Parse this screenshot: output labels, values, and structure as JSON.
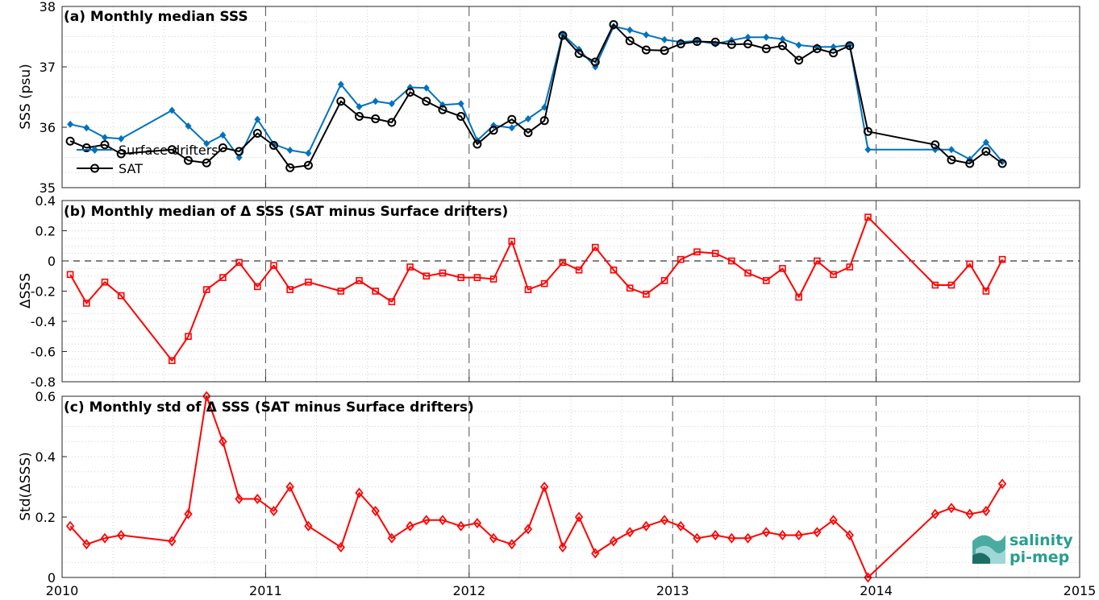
{
  "colors": {
    "drifters": "#0072bd",
    "sat": "#000000",
    "delta": "#ff0000",
    "logo": "#2a9d8f"
  },
  "x_axis": {
    "range": [
      2010,
      2015
    ],
    "ticks": [
      "2010",
      "2011",
      "2012",
      "2013",
      "2014",
      "2015"
    ],
    "year_lines": [
      2011,
      2012,
      2013,
      2014
    ]
  },
  "chart_data": [
    {
      "type": "line",
      "title": "(a) Monthly median SSS",
      "ylabel": "SSS (psu)",
      "ylim": [
        35,
        38
      ],
      "yticks": [
        "35",
        "36",
        "37",
        "38"
      ],
      "grid": true,
      "legend": {
        "placement": "bottom-left",
        "entries": [
          "Surface drifters",
          "SAT"
        ]
      },
      "series": [
        {
          "name": "Surface drifters",
          "marker": "diamond-filled",
          "x": [
            2010.04,
            2010.12,
            2010.21,
            2010.29,
            2010.54,
            2010.62,
            2010.71,
            2010.79,
            2010.87,
            2010.96,
            2011.04,
            2011.12,
            2011.21,
            2011.37,
            2011.46,
            2011.54,
            2011.62,
            2011.71,
            2011.79,
            2011.87,
            2011.96,
            2012.04,
            2012.12,
            2012.21,
            2012.29,
            2012.37,
            2012.46,
            2012.54,
            2012.62,
            2012.71,
            2012.79,
            2012.87,
            2012.96,
            2013.04,
            2013.12,
            2013.21,
            2013.29,
            2013.37,
            2013.46,
            2013.54,
            2013.62,
            2013.71,
            2013.79,
            2013.87,
            2013.96,
            2014.29,
            2014.37,
            2014.46,
            2014.54,
            2014.62
          ],
          "y": [
            36.05,
            35.99,
            35.83,
            35.81,
            36.28,
            36.02,
            35.73,
            35.87,
            35.5,
            36.13,
            35.72,
            35.62,
            35.57,
            36.71,
            36.34,
            36.43,
            36.39,
            36.66,
            36.65,
            36.37,
            36.39,
            35.78,
            36.03,
            35.99,
            36.14,
            36.33,
            37.54,
            37.29,
            37.0,
            37.67,
            37.61,
            37.53,
            37.45,
            37.41,
            37.43,
            37.38,
            37.44,
            37.49,
            37.49,
            37.46,
            37.36,
            37.33,
            37.33,
            37.36,
            35.63,
            35.63,
            35.63,
            35.47,
            35.75,
            35.43
          ]
        },
        {
          "name": "SAT",
          "marker": "circle-open",
          "x": [
            2010.04,
            2010.12,
            2010.21,
            2010.29,
            2010.54,
            2010.62,
            2010.71,
            2010.79,
            2010.87,
            2010.96,
            2011.04,
            2011.12,
            2011.21,
            2011.37,
            2011.46,
            2011.54,
            2011.62,
            2011.71,
            2011.79,
            2011.87,
            2011.96,
            2012.04,
            2012.12,
            2012.21,
            2012.29,
            2012.37,
            2012.46,
            2012.54,
            2012.62,
            2012.71,
            2012.79,
            2012.87,
            2012.96,
            2013.04,
            2013.12,
            2013.21,
            2013.29,
            2013.37,
            2013.46,
            2013.54,
            2013.62,
            2013.71,
            2013.79,
            2013.87,
            2013.96,
            2014.29,
            2014.37,
            2014.46,
            2014.54,
            2014.62
          ],
          "y": [
            35.77,
            35.66,
            35.71,
            35.56,
            35.63,
            35.45,
            35.41,
            35.66,
            35.6,
            35.9,
            35.7,
            35.33,
            35.37,
            36.43,
            36.18,
            36.14,
            36.08,
            36.58,
            36.43,
            36.29,
            36.18,
            35.72,
            35.95,
            36.13,
            35.91,
            36.11,
            37.52,
            37.22,
            37.08,
            37.7,
            37.43,
            37.28,
            37.27,
            37.38,
            37.42,
            37.41,
            37.37,
            37.38,
            37.3,
            37.35,
            37.11,
            37.3,
            37.23,
            37.35,
            35.93,
            35.71,
            35.46,
            35.4,
            35.6,
            35.4
          ]
        }
      ]
    },
    {
      "type": "line",
      "title": "(b) Monthly median of Δ SSS (SAT minus Surface drifters)",
      "ylabel": "ΔSSS",
      "ylim": [
        -0.8,
        0.4
      ],
      "yticks": [
        "-0.8",
        "-0.6",
        "-0.4",
        "-0.2",
        "0",
        "0.2",
        "0.4"
      ],
      "grid": true,
      "reference_line": 0,
      "series": [
        {
          "marker": "square-open",
          "x": [
            2010.04,
            2010.12,
            2010.21,
            2010.29,
            2010.54,
            2010.62,
            2010.71,
            2010.79,
            2010.87,
            2010.96,
            2011.04,
            2011.12,
            2011.21,
            2011.37,
            2011.46,
            2011.54,
            2011.62,
            2011.71,
            2011.79,
            2011.87,
            2011.96,
            2012.04,
            2012.12,
            2012.21,
            2012.29,
            2012.37,
            2012.46,
            2012.54,
            2012.62,
            2012.71,
            2012.79,
            2012.87,
            2012.96,
            2013.04,
            2013.12,
            2013.21,
            2013.29,
            2013.37,
            2013.46,
            2013.54,
            2013.62,
            2013.71,
            2013.79,
            2013.87,
            2013.96,
            2014.29,
            2014.37,
            2014.46,
            2014.54,
            2014.62
          ],
          "y": [
            -0.09,
            -0.28,
            -0.14,
            -0.23,
            -0.66,
            -0.5,
            -0.19,
            -0.11,
            -0.01,
            -0.17,
            -0.03,
            -0.19,
            -0.14,
            -0.2,
            -0.13,
            -0.2,
            -0.27,
            -0.04,
            -0.1,
            -0.08,
            -0.11,
            -0.11,
            -0.12,
            0.13,
            -0.19,
            -0.15,
            -0.01,
            -0.06,
            0.09,
            -0.06,
            -0.18,
            -0.22,
            -0.13,
            0.01,
            0.06,
            0.05,
            0.0,
            -0.08,
            -0.13,
            -0.05,
            -0.24,
            0.0,
            -0.09,
            -0.04,
            0.29,
            -0.16,
            -0.16,
            -0.02,
            -0.2,
            0.01
          ]
        }
      ]
    },
    {
      "type": "line",
      "title": "(c) Monthly std of Δ SSS (SAT minus Surface drifters)",
      "ylabel": "Std(ΔSSS)",
      "ylim": [
        0,
        0.6
      ],
      "yticks": [
        "0",
        "0.2",
        "0.4",
        "0.6"
      ],
      "grid": true,
      "series": [
        {
          "marker": "diamond-open",
          "x": [
            2010.04,
            2010.12,
            2010.21,
            2010.29,
            2010.54,
            2010.62,
            2010.71,
            2010.79,
            2010.87,
            2010.96,
            2011.04,
            2011.12,
            2011.21,
            2011.37,
            2011.46,
            2011.54,
            2011.62,
            2011.71,
            2011.79,
            2011.87,
            2011.96,
            2012.04,
            2012.12,
            2012.21,
            2012.29,
            2012.37,
            2012.46,
            2012.54,
            2012.62,
            2012.71,
            2012.79,
            2012.87,
            2012.96,
            2013.04,
            2013.12,
            2013.21,
            2013.29,
            2013.37,
            2013.46,
            2013.54,
            2013.62,
            2013.71,
            2013.79,
            2013.87,
            2013.96,
            2014.29,
            2014.37,
            2014.46,
            2014.54,
            2014.62
          ],
          "y": [
            0.17,
            0.11,
            0.13,
            0.14,
            0.12,
            0.21,
            0.6,
            0.45,
            0.26,
            0.26,
            0.22,
            0.3,
            0.17,
            0.1,
            0.28,
            0.22,
            0.13,
            0.17,
            0.19,
            0.19,
            0.17,
            0.18,
            0.13,
            0.11,
            0.16,
            0.3,
            0.1,
            0.2,
            0.08,
            0.12,
            0.15,
            0.17,
            0.19,
            0.17,
            0.13,
            0.14,
            0.13,
            0.13,
            0.15,
            0.14,
            0.14,
            0.15,
            0.19,
            0.14,
            0.0,
            0.21,
            0.23,
            0.21,
            0.22,
            0.31
          ]
        }
      ]
    }
  ],
  "logo": {
    "line1": "salinity",
    "line2": "pi-mep"
  }
}
